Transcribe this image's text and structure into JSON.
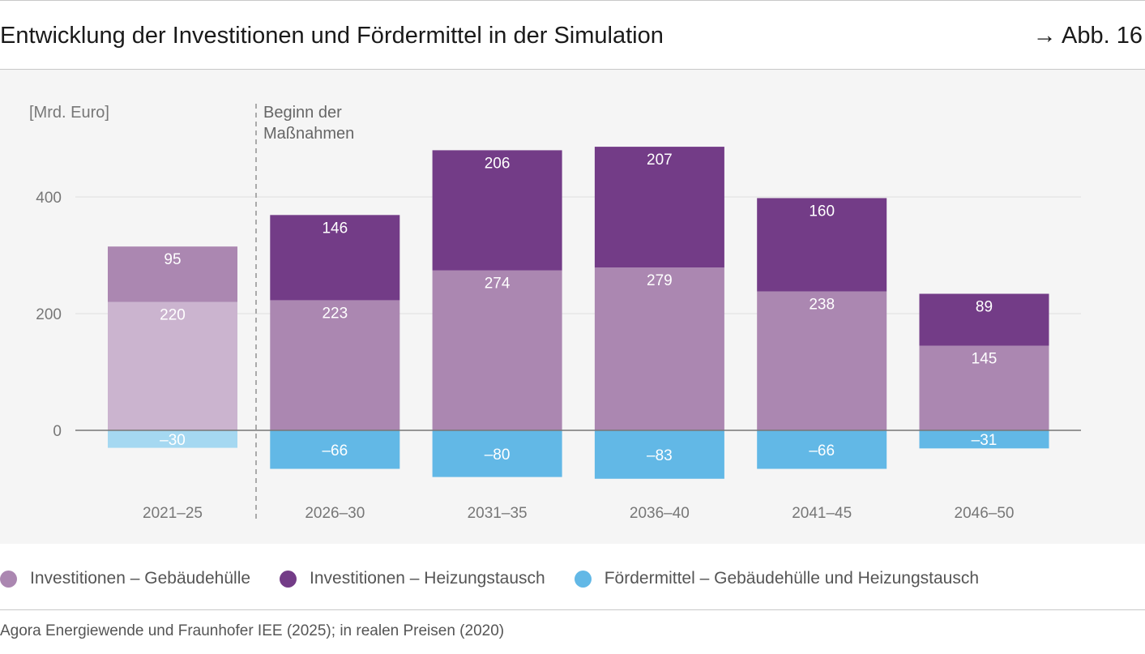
{
  "header": {
    "title": "Entwicklung der Investitionen und Fördermittel in der Simulation",
    "figure_ref": "→ Abb. 16"
  },
  "source": "Agora Energiewende und Fraunhofer IEE (2025); in realen Preisen (2020)",
  "colors": {
    "huelle": "#ab87b1",
    "huelle_light": "#cbb4cf",
    "heizung": "#733c87",
    "foerder": "#62b8e6",
    "foerder_light": "#a5d8f1",
    "grid": "#e4e4e4",
    "axis": "#9a9a9a",
    "background": "#f5f5f5"
  },
  "chart_data": {
    "type": "bar",
    "stacked": true,
    "unit_label": "[Mrd. Euro]",
    "annotation": "Beginn der Maßnahmen",
    "annotation_lines": [
      "Beginn der",
      "Maßnahmen"
    ],
    "categories": [
      "2021–25",
      "2026–30",
      "2031–35",
      "2036–40",
      "2041–45",
      "2046–50"
    ],
    "series": [
      {
        "name": "Investitionen – Gebäudehülle",
        "values": [
          220,
          223,
          274,
          279,
          238,
          145
        ],
        "labels": [
          "220",
          "223",
          "274",
          "279",
          "238",
          "145"
        ]
      },
      {
        "name": "Investitionen – Heizungstausch",
        "values": [
          95,
          146,
          206,
          207,
          160,
          89
        ],
        "labels": [
          "95",
          "146",
          "206",
          "207",
          "160",
          "89"
        ]
      },
      {
        "name": "Fördermittel – Gebäudehülle und Heizungstausch",
        "values": [
          -30,
          -66,
          -80,
          -83,
          -66,
          -31
        ],
        "labels": [
          "–30",
          "–66",
          "–80",
          "–83",
          "–66",
          "–31"
        ]
      }
    ],
    "yticks": [
      0,
      200,
      400
    ],
    "ytick_labels": [
      "0",
      "200",
      "400"
    ],
    "ylim": [
      -110,
      520
    ],
    "grid": true,
    "legend_position": "bottom",
    "notes": "First period (2021–25) is shown in lighter tones, before the start of the measures."
  }
}
